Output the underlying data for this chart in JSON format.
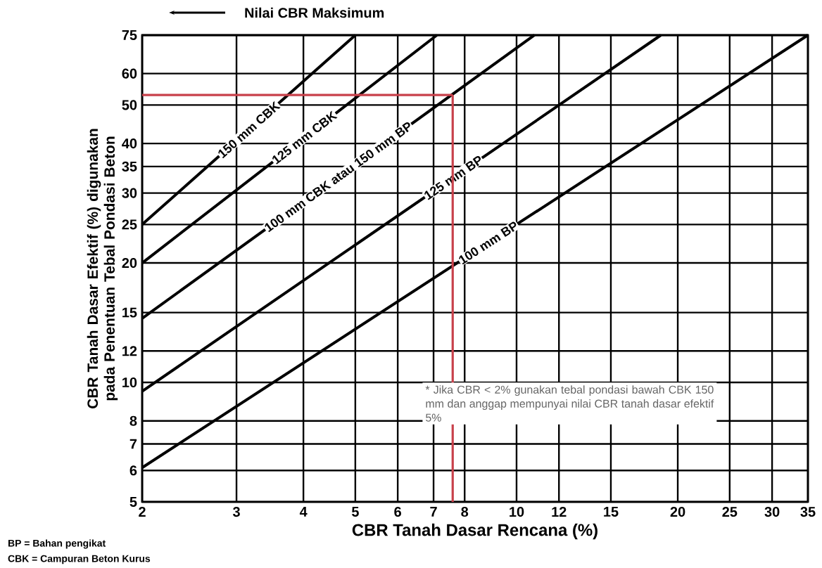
{
  "chart_data": {
    "type": "line",
    "xlabel": "CBR Tanah Dasar Rencana (%)",
    "ylabel": "CBR Tanah Dasar Efektif (%) digunakan pada Penentuan Tebal Pondasi Beton",
    "log": "xy",
    "grid": true,
    "xlim": [
      2,
      35
    ],
    "ylim": [
      5,
      75
    ],
    "xticks": [
      2,
      3,
      4,
      5,
      6,
      7,
      8,
      10,
      12,
      15,
      20,
      25,
      30,
      35
    ],
    "yticks": [
      5,
      6,
      7,
      8,
      10,
      12,
      15,
      20,
      25,
      30,
      35,
      40,
      50,
      60,
      75
    ],
    "series": [
      {
        "name": "150 mm CBK",
        "color": "#000000",
        "x": [
          2,
          5
        ],
        "values": [
          25,
          75
        ]
      },
      {
        "name": "125 mm CBK",
        "color": "#000000",
        "x": [
          2,
          7.1
        ],
        "values": [
          20,
          75
        ]
      },
      {
        "name": "100 mm CBK atau 150 mm BP",
        "color": "#000000",
        "x": [
          2,
          10.8
        ],
        "values": [
          14.5,
          75
        ]
      },
      {
        "name": "125 mm BP",
        "color": "#000000",
        "x": [
          2,
          18.6
        ],
        "values": [
          9.5,
          75
        ]
      },
      {
        "name": "100 mm BP",
        "color": "#000000",
        "x": [
          2,
          35
        ],
        "values": [
          6.1,
          75
        ]
      }
    ],
    "ref_lines": [
      {
        "axis": "y",
        "value": 53,
        "color": "#c8414b"
      },
      {
        "axis": "x",
        "value": 7.6,
        "color": "#c8414b"
      }
    ],
    "annotations": [
      "Nilai CBR Maksimum",
      "BP = Bahan pengikat",
      "CBK = Campuran Beton Kurus",
      "* Jika CBR < 2% gunakan tebal pondasi bawah CBK 150 mm dan anggap mempunyai nilai CBR tanah dasar efektif 5%"
    ]
  }
}
